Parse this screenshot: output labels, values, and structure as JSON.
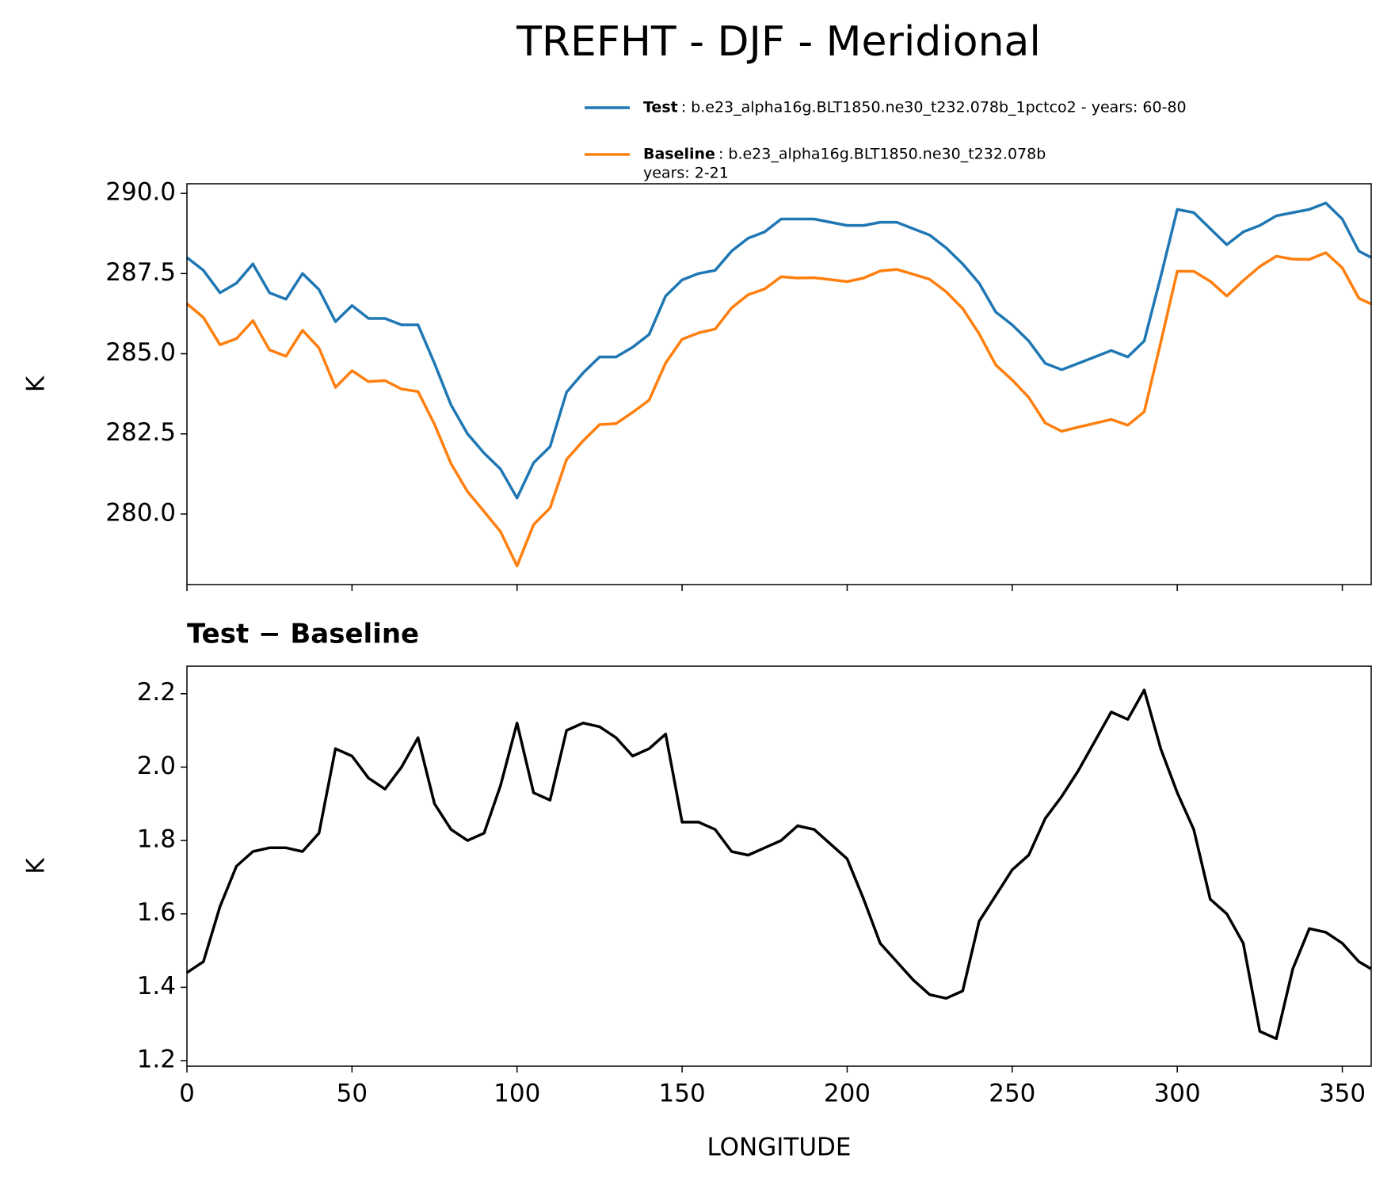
{
  "title": "TREFHT - DJF - Meridional",
  "chart_data": [
    {
      "type": "line",
      "x": [
        0,
        5,
        10,
        15,
        20,
        25,
        30,
        35,
        40,
        45,
        50,
        55,
        60,
        65,
        70,
        75,
        80,
        85,
        90,
        95,
        100,
        105,
        110,
        115,
        120,
        125,
        130,
        135,
        140,
        145,
        150,
        155,
        160,
        165,
        170,
        175,
        180,
        185,
        190,
        195,
        200,
        205,
        210,
        215,
        220,
        225,
        230,
        235,
        240,
        245,
        250,
        255,
        260,
        265,
        270,
        275,
        280,
        285,
        290,
        295,
        300,
        305,
        310,
        315,
        320,
        325,
        330,
        335,
        340,
        345,
        350,
        355,
        358.75
      ],
      "series": [
        {
          "name": "Test",
          "legend_text": [
            ": b.e23_alpha16g.BLT1850.ne30_t232.078b_1pctco2 - years: 60-80"
          ],
          "color": "#1f77b4",
          "values": [
            288.0,
            287.6,
            286.9,
            287.2,
            287.8,
            286.9,
            286.7,
            287.5,
            287.0,
            286.0,
            286.5,
            286.1,
            286.1,
            285.9,
            285.9,
            284.7,
            283.4,
            282.5,
            281.9,
            281.4,
            280.5,
            281.6,
            282.1,
            283.8,
            284.4,
            284.9,
            284.9,
            285.2,
            285.6,
            286.8,
            287.3,
            287.5,
            287.6,
            288.2,
            288.6,
            288.8,
            289.2,
            289.2,
            289.2,
            289.1,
            289.0,
            289.0,
            289.1,
            289.1,
            288.9,
            288.7,
            288.3,
            287.8,
            287.2,
            286.3,
            285.9,
            285.4,
            284.7,
            284.5,
            284.7,
            284.9,
            285.1,
            284.9,
            285.4,
            287.4,
            289.5,
            289.4,
            288.9,
            288.4,
            288.8,
            289.0,
            289.3,
            289.4,
            289.5,
            289.7,
            289.2,
            288.2,
            288.0
          ]
        },
        {
          "name": "Baseline",
          "legend_text": [
            ": b.e23_alpha16g.BLT1850.ne30_t232.078b",
            "years: 2-21"
          ],
          "color": "#ff7f0e",
          "values": [
            286.56,
            286.13,
            285.28,
            285.47,
            286.03,
            285.12,
            284.92,
            285.73,
            285.18,
            283.95,
            284.47,
            284.13,
            284.16,
            283.9,
            283.82,
            282.8,
            281.57,
            280.7,
            280.08,
            279.45,
            278.38,
            279.67,
            280.19,
            281.7,
            282.28,
            282.79,
            282.82,
            283.17,
            283.55,
            284.71,
            285.45,
            285.65,
            285.77,
            286.43,
            286.84,
            287.02,
            287.4,
            287.36,
            287.37,
            287.31,
            287.25,
            287.36,
            287.58,
            287.63,
            287.48,
            287.32,
            286.93,
            286.41,
            285.62,
            284.65,
            284.18,
            283.64,
            282.84,
            282.58,
            282.71,
            282.83,
            282.95,
            282.77,
            283.19,
            285.35,
            287.57,
            287.57,
            287.26,
            286.8,
            287.28,
            287.72,
            288.04,
            287.95,
            287.94,
            288.15,
            287.68,
            286.73,
            286.55
          ]
        }
      ],
      "ylabel": "K",
      "xlim": [
        0,
        358.75
      ],
      "xticks": [
        0,
        50,
        100,
        150,
        200,
        250,
        300,
        350
      ],
      "ylim": [
        277.8,
        290.3
      ],
      "yticks": [
        {
          "value": 280,
          "label": "280.0"
        },
        282.5,
        {
          "value": 285,
          "label": "285.0"
        },
        287.5,
        {
          "value": 290,
          "label": "290.0"
        }
      ]
    },
    {
      "type": "line",
      "title": "Test − Baseline",
      "x": [
        0,
        5,
        10,
        15,
        20,
        25,
        30,
        35,
        40,
        45,
        50,
        55,
        60,
        65,
        70,
        75,
        80,
        85,
        90,
        95,
        100,
        105,
        110,
        115,
        120,
        125,
        130,
        135,
        140,
        145,
        150,
        155,
        160,
        165,
        170,
        175,
        180,
        185,
        190,
        195,
        200,
        205,
        210,
        215,
        220,
        225,
        230,
        235,
        240,
        245,
        250,
        255,
        260,
        265,
        270,
        275,
        280,
        285,
        290,
        295,
        300,
        305,
        310,
        315,
        320,
        325,
        330,
        335,
        340,
        345,
        350,
        355,
        358.75
      ],
      "series": [
        {
          "color": "#000000",
          "values": [
            1.44,
            1.47,
            1.62,
            1.73,
            1.77,
            1.78,
            1.78,
            1.77,
            1.82,
            2.05,
            2.03,
            1.97,
            1.94,
            2.0,
            2.08,
            1.9,
            1.83,
            1.8,
            1.82,
            1.95,
            2.12,
            1.93,
            1.91,
            2.1,
            2.12,
            2.11,
            2.08,
            2.03,
            2.05,
            2.09,
            1.85,
            1.85,
            1.83,
            1.77,
            1.76,
            1.78,
            1.8,
            1.84,
            1.83,
            1.79,
            1.75,
            1.64,
            1.52,
            1.47,
            1.42,
            1.38,
            1.37,
            1.39,
            1.58,
            1.65,
            1.72,
            1.76,
            1.86,
            1.92,
            1.99,
            2.07,
            2.15,
            2.13,
            2.21,
            2.05,
            1.93,
            1.83,
            1.64,
            1.6,
            1.52,
            1.28,
            1.26,
            1.45,
            1.56,
            1.55,
            1.52,
            1.47,
            1.45
          ]
        }
      ],
      "xlabel": "LONGITUDE",
      "ylabel": "K",
      "xlim": [
        0,
        358.75
      ],
      "xticks": [
        0,
        50,
        100,
        150,
        200,
        250,
        300,
        350
      ],
      "ylim": [
        1.185,
        2.275
      ],
      "yticks": [
        1.2,
        1.4,
        1.6,
        1.8,
        {
          "value": 2,
          "label": "2.0"
        },
        2.2
      ]
    }
  ]
}
